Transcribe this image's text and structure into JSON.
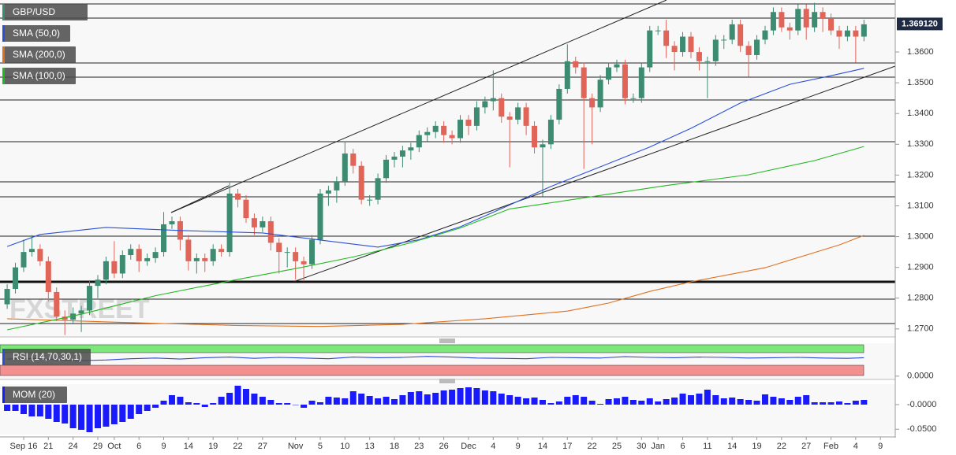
{
  "chart_data": [
    {
      "type": "candlestick",
      "symbol": "GBP/USD",
      "watermark": "FXSTREET",
      "up_color": "#3d8c72",
      "down_color": "#e06458",
      "xlim": [
        -0.87,
        107.8
      ],
      "xticks": [
        {
          "value": 2,
          "label": "Sep 16"
        },
        {
          "value": 5,
          "label": "21"
        },
        {
          "value": 8,
          "label": "24"
        },
        {
          "value": 11,
          "label": "29"
        },
        {
          "value": 13,
          "label": "Oct"
        },
        {
          "value": 16,
          "label": "6"
        },
        {
          "value": 19,
          "label": "9"
        },
        {
          "value": 22,
          "label": "14"
        },
        {
          "value": 25,
          "label": "19"
        },
        {
          "value": 28,
          "label": "22"
        },
        {
          "value": 31,
          "label": "27"
        },
        {
          "value": 35,
          "label": "Nov"
        },
        {
          "value": 38,
          "label": "5"
        },
        {
          "value": 41,
          "label": "10"
        },
        {
          "value": 44,
          "label": "13"
        },
        {
          "value": 47,
          "label": "18"
        },
        {
          "value": 50,
          "label": "23"
        },
        {
          "value": 53,
          "label": "26"
        },
        {
          "value": 56,
          "label": "Dec"
        },
        {
          "value": 59,
          "label": "4"
        },
        {
          "value": 62,
          "label": "9"
        },
        {
          "value": 65,
          "label": "14"
        },
        {
          "value": 68,
          "label": "17"
        },
        {
          "value": 71,
          "label": "22"
        },
        {
          "value": 74,
          "label": "25"
        },
        {
          "value": 77,
          "label": "30"
        },
        {
          "value": 79,
          "label": "Jan"
        },
        {
          "value": 82,
          "label": "6"
        },
        {
          "value": 85,
          "label": "11"
        },
        {
          "value": 88,
          "label": "14"
        },
        {
          "value": 91,
          "label": "19"
        },
        {
          "value": 94,
          "label": "22"
        },
        {
          "value": 97,
          "label": "27"
        },
        {
          "value": 100,
          "label": "Feb"
        },
        {
          "value": 103,
          "label": "4"
        },
        {
          "value": 106,
          "label": "9"
        }
      ],
      "ylim": [
        1.2674,
        1.3769
      ],
      "yticks": [
        {
          "value": 1.27,
          "label": "1.2700"
        },
        {
          "value": 1.28,
          "label": "1.2800"
        },
        {
          "value": 1.29,
          "label": "1.2900"
        },
        {
          "value": 1.3,
          "label": "1.3000"
        },
        {
          "value": 1.31,
          "label": "1.3100"
        },
        {
          "value": 1.32,
          "label": "1.3200"
        },
        {
          "value": 1.33,
          "label": "1.3300"
        },
        {
          "value": 1.34,
          "label": "1.3400"
        },
        {
          "value": 1.35,
          "label": "1.3500"
        },
        {
          "value": 1.36,
          "label": "1.3600"
        }
      ],
      "last_price": {
        "value": 1.36912,
        "label": "1.369120"
      },
      "candles": [
        [
          1.278,
          1.2845,
          1.2765,
          1.283
        ],
        [
          1.283,
          1.2915,
          1.2815,
          1.29
        ],
        [
          1.29,
          1.299,
          1.2885,
          1.295
        ],
        [
          1.295,
          1.3005,
          1.2935,
          1.296
        ],
        [
          1.296,
          1.2975,
          1.2905,
          1.292
        ],
        [
          1.292,
          1.2935,
          1.279,
          1.282
        ],
        [
          1.282,
          1.2835,
          1.2725,
          1.274
        ],
        [
          1.274,
          1.276,
          1.268,
          1.273
        ],
        [
          1.273,
          1.277,
          1.2715,
          1.275
        ],
        [
          1.275,
          1.2775,
          1.269,
          1.276
        ],
        [
          1.276,
          1.2855,
          1.2745,
          1.284
        ],
        [
          1.284,
          1.2875,
          1.28,
          1.286
        ],
        [
          1.286,
          1.2935,
          1.2845,
          1.292
        ],
        [
          1.292,
          1.2985,
          1.2865,
          1.288
        ],
        [
          1.288,
          1.2955,
          1.2865,
          1.294
        ],
        [
          1.294,
          1.2975,
          1.2925,
          1.296
        ],
        [
          1.296,
          1.2975,
          1.2885,
          1.292
        ],
        [
          1.292,
          1.2945,
          1.2905,
          1.293
        ],
        [
          1.293,
          1.2965,
          1.2915,
          1.295
        ],
        [
          1.295,
          1.308,
          1.2935,
          1.304
        ],
        [
          1.304,
          1.3065,
          1.3025,
          1.305
        ],
        [
          1.305,
          1.3065,
          1.2955,
          1.299
        ],
        [
          1.299,
          1.3005,
          1.289,
          1.292
        ],
        [
          1.292,
          1.2945,
          1.288,
          1.293
        ],
        [
          1.293,
          1.2945,
          1.2885,
          1.292
        ],
        [
          1.292,
          1.2975,
          1.2905,
          1.296
        ],
        [
          1.296,
          1.2975,
          1.2935,
          1.295
        ],
        [
          1.295,
          1.3175,
          1.2935,
          1.314
        ],
        [
          1.314,
          1.3155,
          1.3095,
          1.312
        ],
        [
          1.312,
          1.3135,
          1.3045,
          1.306
        ],
        [
          1.306,
          1.3075,
          1.3005,
          1.303
        ],
        [
          1.303,
          1.3065,
          1.3015,
          1.305
        ],
        [
          1.305,
          1.3065,
          1.2955,
          1.298
        ],
        [
          1.298,
          1.2995,
          1.288,
          1.295
        ],
        [
          1.295,
          1.2965,
          1.29,
          1.295
        ],
        [
          1.295,
          1.2965,
          1.286,
          1.292
        ],
        [
          1.292,
          1.2935,
          1.2855,
          1.291
        ],
        [
          1.291,
          1.3005,
          1.2895,
          1.299
        ],
        [
          1.299,
          1.3155,
          1.2975,
          1.314
        ],
        [
          1.314,
          1.3165,
          1.31,
          1.315
        ],
        [
          1.315,
          1.3195,
          1.311,
          1.318
        ],
        [
          1.318,
          1.331,
          1.3165,
          1.327
        ],
        [
          1.327,
          1.3285,
          1.3205,
          1.323
        ],
        [
          1.323,
          1.3245,
          1.3105,
          1.312
        ],
        [
          1.312,
          1.3135,
          1.31,
          1.312
        ],
        [
          1.312,
          1.3205,
          1.3105,
          1.319
        ],
        [
          1.319,
          1.3265,
          1.3175,
          1.325
        ],
        [
          1.325,
          1.3275,
          1.3225,
          1.326
        ],
        [
          1.326,
          1.3295,
          1.3225,
          1.328
        ],
        [
          1.328,
          1.3305,
          1.325,
          1.329
        ],
        [
          1.329,
          1.3345,
          1.3275,
          1.333
        ],
        [
          1.333,
          1.3355,
          1.331,
          1.334
        ],
        [
          1.334,
          1.3375,
          1.332,
          1.336
        ],
        [
          1.336,
          1.3375,
          1.3305,
          1.333
        ],
        [
          1.333,
          1.3345,
          1.33,
          1.332
        ],
        [
          1.332,
          1.3395,
          1.3305,
          1.338
        ],
        [
          1.338,
          1.3395,
          1.333,
          1.336
        ],
        [
          1.336,
          1.344,
          1.3345,
          1.342
        ],
        [
          1.342,
          1.3455,
          1.34,
          1.344
        ],
        [
          1.344,
          1.354,
          1.341,
          1.345
        ],
        [
          1.345,
          1.3465,
          1.337,
          1.339
        ],
        [
          1.339,
          1.3405,
          1.3225,
          1.338
        ],
        [
          1.338,
          1.3435,
          1.3365,
          1.342
        ],
        [
          1.342,
          1.3435,
          1.333,
          1.336
        ],
        [
          1.336,
          1.3375,
          1.327,
          1.329
        ],
        [
          1.329,
          1.3315,
          1.313,
          1.33
        ],
        [
          1.33,
          1.3395,
          1.3285,
          1.338
        ],
        [
          1.338,
          1.3495,
          1.3365,
          1.348
        ],
        [
          1.348,
          1.3625,
          1.3465,
          1.357
        ],
        [
          1.357,
          1.3585,
          1.353,
          1.355
        ],
        [
          1.355,
          1.3565,
          1.322,
          1.345
        ],
        [
          1.345,
          1.3465,
          1.33,
          1.342
        ],
        [
          1.342,
          1.3525,
          1.3405,
          1.351
        ],
        [
          1.351,
          1.3565,
          1.3495,
          1.355
        ],
        [
          1.355,
          1.3575,
          1.3535,
          1.356
        ],
        [
          1.356,
          1.3575,
          1.343,
          1.345
        ],
        [
          1.345,
          1.3465,
          1.3435,
          1.345
        ],
        [
          1.345,
          1.3565,
          1.3435,
          1.355
        ],
        [
          1.355,
          1.3685,
          1.3535,
          1.367
        ],
        [
          1.367,
          1.3685,
          1.3655,
          1.367
        ],
        [
          1.367,
          1.3705,
          1.358,
          1.362
        ],
        [
          1.362,
          1.3635,
          1.354,
          1.36
        ],
        [
          1.36,
          1.3665,
          1.3585,
          1.365
        ],
        [
          1.365,
          1.3665,
          1.358,
          1.36
        ],
        [
          1.36,
          1.3615,
          1.354,
          1.357
        ],
        [
          1.357,
          1.3585,
          1.345,
          1.357
        ],
        [
          1.357,
          1.3655,
          1.3555,
          1.364
        ],
        [
          1.364,
          1.3655,
          1.361,
          1.364
        ],
        [
          1.364,
          1.3705,
          1.3625,
          1.369
        ],
        [
          1.369,
          1.3705,
          1.36,
          1.362
        ],
        [
          1.362,
          1.3635,
          1.352,
          1.359
        ],
        [
          1.359,
          1.3655,
          1.3575,
          1.364
        ],
        [
          1.364,
          1.3685,
          1.3625,
          1.367
        ],
        [
          1.367,
          1.3745,
          1.3655,
          1.373
        ],
        [
          1.373,
          1.3745,
          1.3665,
          1.368
        ],
        [
          1.368,
          1.3695,
          1.364,
          1.367
        ],
        [
          1.367,
          1.3755,
          1.3655,
          1.374
        ],
        [
          1.374,
          1.3755,
          1.364,
          1.368
        ],
        [
          1.368,
          1.376,
          1.3665,
          1.373
        ],
        [
          1.373,
          1.3745,
          1.3665,
          1.371
        ],
        [
          1.371,
          1.3725,
          1.3655,
          1.367
        ],
        [
          1.367,
          1.3685,
          1.361,
          1.365
        ],
        [
          1.365,
          1.3685,
          1.3635,
          1.367
        ],
        [
          1.367,
          1.3685,
          1.3565,
          1.365
        ],
        [
          1.365,
          1.3705,
          1.3635,
          1.369
        ]
      ],
      "series": [
        {
          "name": "SMA (50,0)",
          "color": "#2a50d8",
          "x": [
            0,
            4,
            12,
            21,
            31,
            38,
            45,
            50,
            55,
            60,
            66,
            72,
            78,
            83,
            89,
            95,
            100,
            104
          ],
          "values": [
            1.2968,
            1.3007,
            1.303,
            1.302,
            1.3012,
            1.2989,
            1.2966,
            1.299,
            1.3032,
            1.3091,
            1.3163,
            1.3227,
            1.3291,
            1.3352,
            1.3434,
            1.3495,
            1.3523,
            1.3547
          ]
        },
        {
          "name": "SMA (200,0)",
          "color": "#e07020",
          "x": [
            0,
            14,
            28,
            38,
            48,
            58,
            68,
            73,
            78,
            83,
            92,
            101,
            104
          ],
          "values": [
            1.2733,
            1.2721,
            1.2711,
            1.2708,
            1.2715,
            1.2733,
            1.2758,
            1.2784,
            1.2822,
            1.2853,
            1.2899,
            1.2973,
            1.3004
          ]
        },
        {
          "name": "SMA (100,0)",
          "color": "#22b822",
          "x": [
            0,
            9,
            18,
            28,
            35,
            42,
            49,
            55,
            61,
            71,
            80,
            90,
            98,
            104
          ],
          "values": [
            1.2697,
            1.2748,
            1.2808,
            1.2861,
            1.2896,
            1.2934,
            1.298,
            1.3028,
            1.309,
            1.313,
            1.3166,
            1.3201,
            1.3247,
            1.3293
          ]
        }
      ]
    },
    {
      "type": "line",
      "title": "RSI (14,70,30,1)",
      "ylim": [
        -10,
        100
      ],
      "yticks": [
        {
          "value": 0,
          "label": "0.0000"
        }
      ],
      "series": [
        {
          "color": "#2c4bd6",
          "x": [
            0,
            3,
            6,
            9,
            12,
            15,
            18,
            21,
            24,
            27,
            30,
            33,
            36,
            39,
            42,
            45,
            48,
            51,
            54,
            57,
            60,
            63,
            66,
            69,
            72,
            75,
            78,
            81,
            84,
            87,
            90,
            93,
            96,
            99,
            102,
            104
          ],
          "values": [
            52,
            54,
            50,
            47,
            49,
            53,
            55,
            52,
            56,
            58,
            54,
            57,
            55,
            53,
            58,
            56,
            57,
            60,
            58,
            55,
            54,
            53,
            57,
            56,
            55,
            59,
            57,
            56,
            58,
            57,
            55,
            56,
            57,
            55,
            54,
            56
          ]
        }
      ]
    },
    {
      "type": "bar",
      "title": "MOM (20)",
      "color": "#1a1aff",
      "ylim": [
        -0.0608,
        0.0416
      ],
      "yticks": [
        {
          "value": 0,
          "label": "-0.0000"
        },
        {
          "value": -0.05,
          "label": "-0.0500"
        }
      ],
      "values": [
        -0.0128,
        -0.0128,
        -0.0192,
        -0.024,
        -0.024,
        -0.0288,
        -0.0352,
        -0.0384,
        -0.048,
        -0.0512,
        -0.056,
        -0.048,
        -0.0448,
        -0.04,
        -0.0352,
        -0.0288,
        -0.0192,
        -0.0128,
        -0.0064,
        0.008,
        0.0192,
        0.016,
        0.0048,
        0.0032,
        -0.0048,
        0.0032,
        0.016,
        0.024,
        0.0384,
        0.032,
        0.0224,
        0.016,
        0.0096,
        0.0032,
        0.0032,
        0,
        -0.0064,
        0.008,
        0.0048,
        0.016,
        0.0144,
        0.0128,
        0.0272,
        0.0224,
        0.0176,
        0.0128,
        0.016,
        0.0112,
        0.0192,
        0.0256,
        0.0272,
        0.0208,
        0.024,
        0.0288,
        0.0304,
        0.0336,
        0.0352,
        0.0336,
        0.0288,
        0.0272,
        0.0224,
        0.0192,
        0.016,
        0.0128,
        0.0144,
        0.0096,
        0.0032,
        0.0064,
        0.016,
        0.0192,
        0.016,
        0.008,
        0.0016,
        0.0112,
        0.0128,
        0.016,
        0.0096,
        0.008,
        0.0128,
        0.0064,
        0.0112,
        0.0144,
        0.0224,
        0.0192,
        0.0224,
        0.0304,
        0.0192,
        0.0128,
        0.0144,
        0.0112,
        0.0096,
        0.008,
        0.0208,
        0.016,
        0.0128,
        0.0096,
        0.016,
        0.0192,
        0.0048,
        0.0048,
        0.0048,
        0.0064,
        0.0032,
        0.008,
        0.0096
      ]
    }
  ]
}
